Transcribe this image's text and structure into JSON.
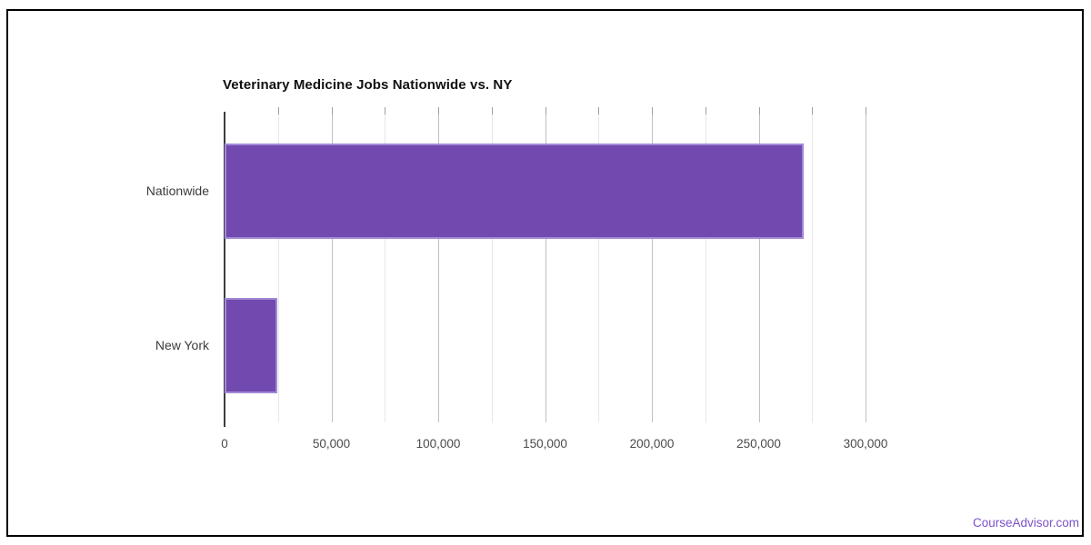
{
  "page": {
    "footer_link": "CourseAdvisor.com"
  },
  "colors": {
    "bar_fill": "#7149AF",
    "bar_border": "#A189D5",
    "axis_line": "#3d3d3d",
    "grid_major": "#bfbfbf",
    "grid_minor": "#e7e7e7",
    "brand_link": "#7B52C9",
    "frame_border": "#000000"
  },
  "chart_data": {
    "type": "bar",
    "orientation": "horizontal",
    "title": "Veterinary Medicine Jobs Nationwide vs. NY",
    "categories": [
      "Nationwide",
      "New York"
    ],
    "values": [
      271000,
      24700
    ],
    "xlabel": "",
    "ylabel": "",
    "xlim": [
      0,
      300000
    ],
    "x_tick_interval": 50000,
    "x_minor_grid_interval": 25000,
    "x_tick_labels": [
      "0",
      "50,000",
      "100,000",
      "150,000",
      "200,000",
      "250,000",
      "300,000"
    ],
    "grid": true,
    "legend_position": "none"
  }
}
